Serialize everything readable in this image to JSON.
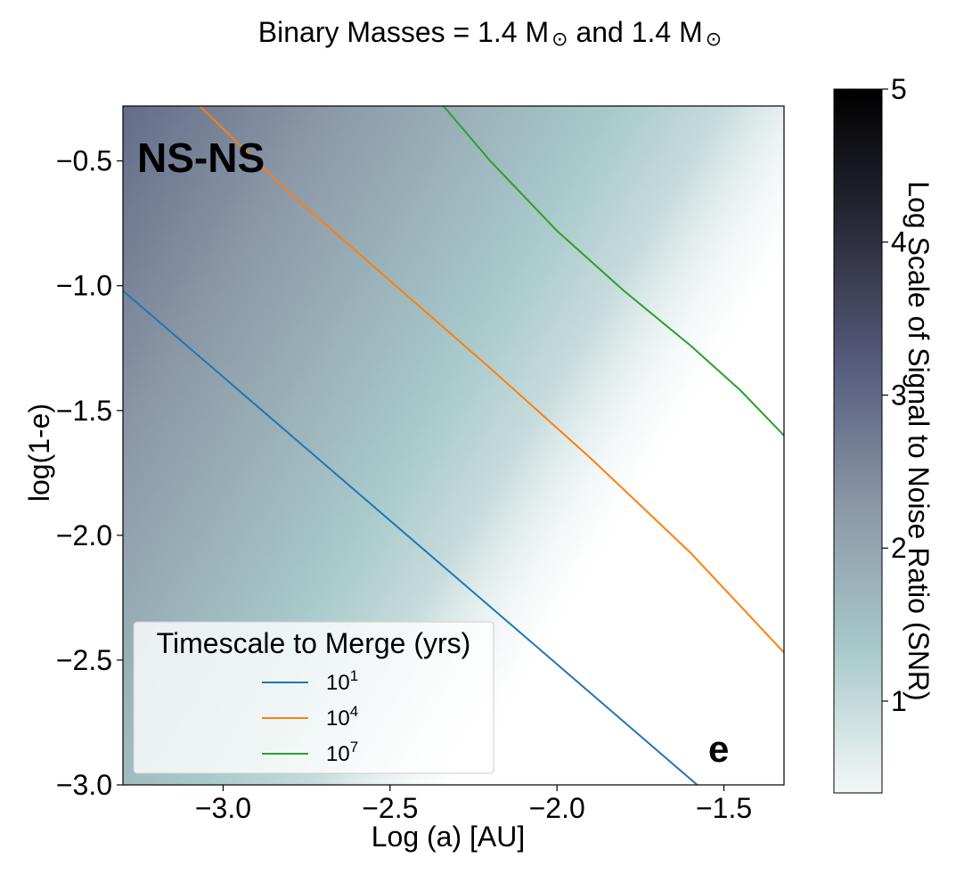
{
  "chart_data": {
    "type": "heatmap",
    "title": "Binary Masses = 1.4 M",
    "title_mid": " and 1.4 M",
    "title_symbol": "⊙",
    "xlabel": "Log (a) [AU]",
    "ylabel": "log(1-e)",
    "xlim": [
      -3.3,
      -1.32
    ],
    "ylim": [
      -3.0,
      -0.28
    ],
    "xticks": [
      -3.0,
      -2.5,
      -2.0,
      -1.5
    ],
    "xtick_labels": [
      "−3.0",
      "−2.5",
      "−2.0",
      "−1.5"
    ],
    "yticks": [
      -3.0,
      -2.5,
      -2.0,
      -1.5,
      -1.0,
      -0.5
    ],
    "ytick_labels": [
      "−3.0",
      "−2.5",
      "−2.0",
      "−1.5",
      "−1.0",
      "−0.5"
    ],
    "heatmap": {
      "description": "Log SNR field; diagonal band decreasing toward larger a and smaller (1-e)",
      "formula": "logSNR = 2.93 - 1.1*(log_a + 3.3) + 0.5*(log_1me + 0.3)",
      "visible_range": [
        0.4,
        5.0
      ]
    },
    "colorbar": {
      "label": "Log Scale of Signal to Noise Ratio (SNR)",
      "range": [
        0.4,
        5.0
      ],
      "ticks": [
        1,
        2,
        3,
        4,
        5
      ],
      "tick_labels": [
        "1",
        "2",
        "3",
        "4",
        "5"
      ],
      "colormap": [
        "#f4f7f7",
        "#a9cacb",
        "#8c9aa8",
        "#585e7f",
        "#2b2b3a",
        "#000000"
      ]
    },
    "series": [
      {
        "name": "10^1",
        "label_base": "10",
        "label_exp": "1",
        "color": "#1f77b4",
        "x": [
          -3.3,
          -1.58
        ],
        "y": [
          -1.02,
          -3.0
        ]
      },
      {
        "name": "10^4",
        "label_base": "10",
        "label_exp": "4",
        "color": "#ff7f0e",
        "x": [
          -3.07,
          -2.8,
          -2.5,
          -2.2,
          -1.9,
          -1.6,
          -1.32
        ],
        "y": [
          -0.28,
          -0.63,
          -0.98,
          -1.33,
          -1.69,
          -2.07,
          -2.47
        ]
      },
      {
        "name": "10^7",
        "label_base": "10",
        "label_exp": "7",
        "color": "#2ca02c",
        "x": [
          -2.34,
          -2.2,
          -2.0,
          -1.8,
          -1.6,
          -1.45,
          -1.32
        ],
        "y": [
          -0.28,
          -0.5,
          -0.78,
          -1.02,
          -1.24,
          -1.42,
          -1.6
        ]
      }
    ],
    "legend": {
      "title": "Timescale to Merge (yrs)",
      "placement": "lower-left"
    },
    "annotations": [
      {
        "text": "NS-NS",
        "color": "#4349c9",
        "at": "top-left"
      },
      {
        "text": "e",
        "color": "#4349c9",
        "at": "bottom-right"
      }
    ]
  }
}
